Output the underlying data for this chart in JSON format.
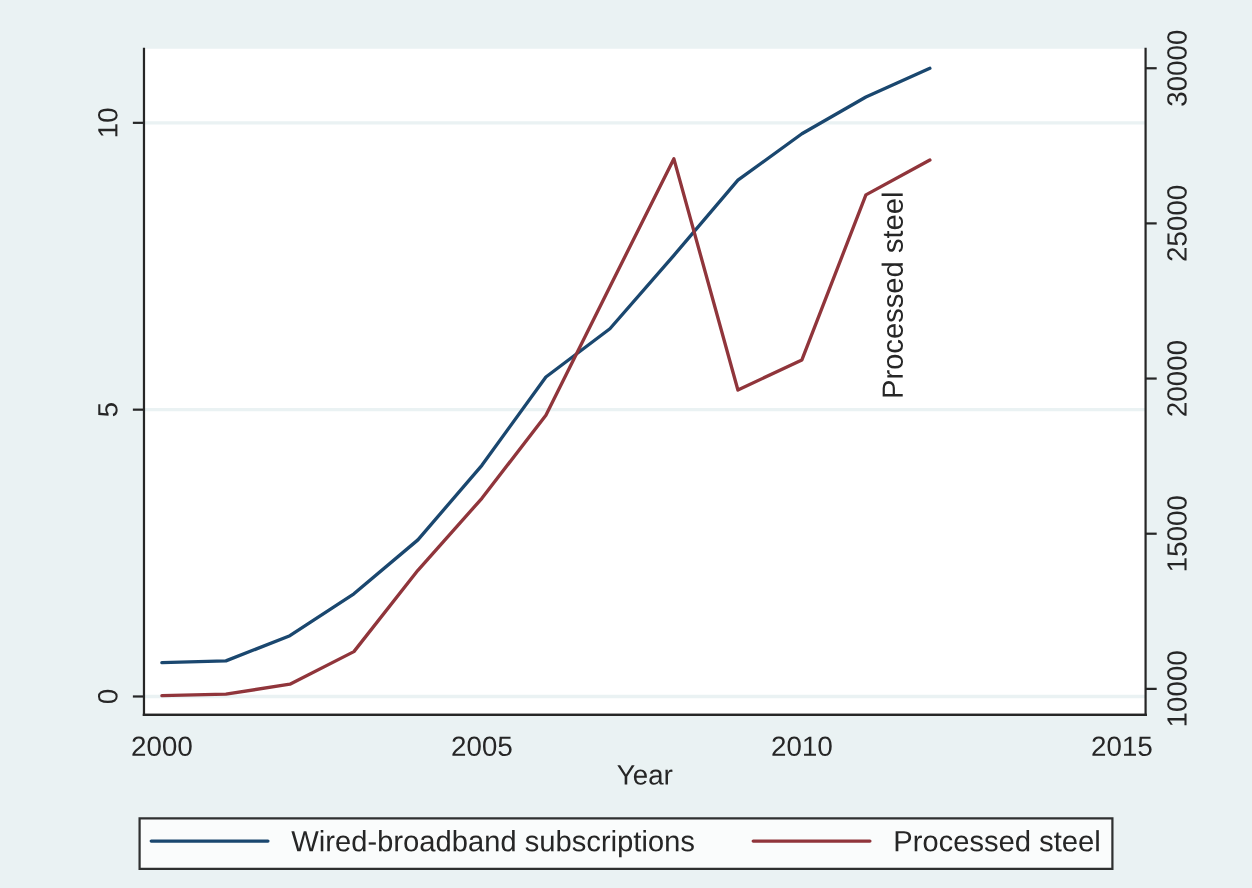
{
  "chart_data": {
    "type": "line",
    "xlabel": "Year",
    "x": [
      2000,
      2001,
      2002,
      2003,
      2004,
      2005,
      2006,
      2007,
      2008,
      2009,
      2010,
      2011,
      2012
    ],
    "series": [
      {
        "name": "Wired-broadband subscriptions",
        "color": "#1a476f",
        "values": [
          0.59,
          0.62,
          1.06,
          1.79,
          2.73,
          4.03,
          5.57,
          6.41,
          7.69,
          9.0,
          9.81,
          10.45,
          10.95
        ]
      },
      {
        "name": "Processed steel",
        "color": "#90353b",
        "axis": "y2",
        "values": [
          9780,
          9830,
          10150,
          11200,
          13820,
          16140,
          18820,
          22960,
          27080,
          19630,
          20600,
          25920,
          27040
        ]
      }
    ],
    "xlim": [
      1999.72,
      2015.37
    ],
    "xticks": [
      2000,
      2005,
      2010,
      2015
    ],
    "ylim": [
      -0.32,
      11.29
    ],
    "yticks": [
      0,
      5,
      10
    ],
    "y2lim": [
      9163,
      30625
    ],
    "y2ticks": [
      10000,
      15000,
      20000,
      25000,
      30000
    ],
    "annotations": [
      "Processed steel"
    ],
    "grid": "y",
    "legend": "bottom",
    "marker": "none",
    "line_style": "solid"
  }
}
